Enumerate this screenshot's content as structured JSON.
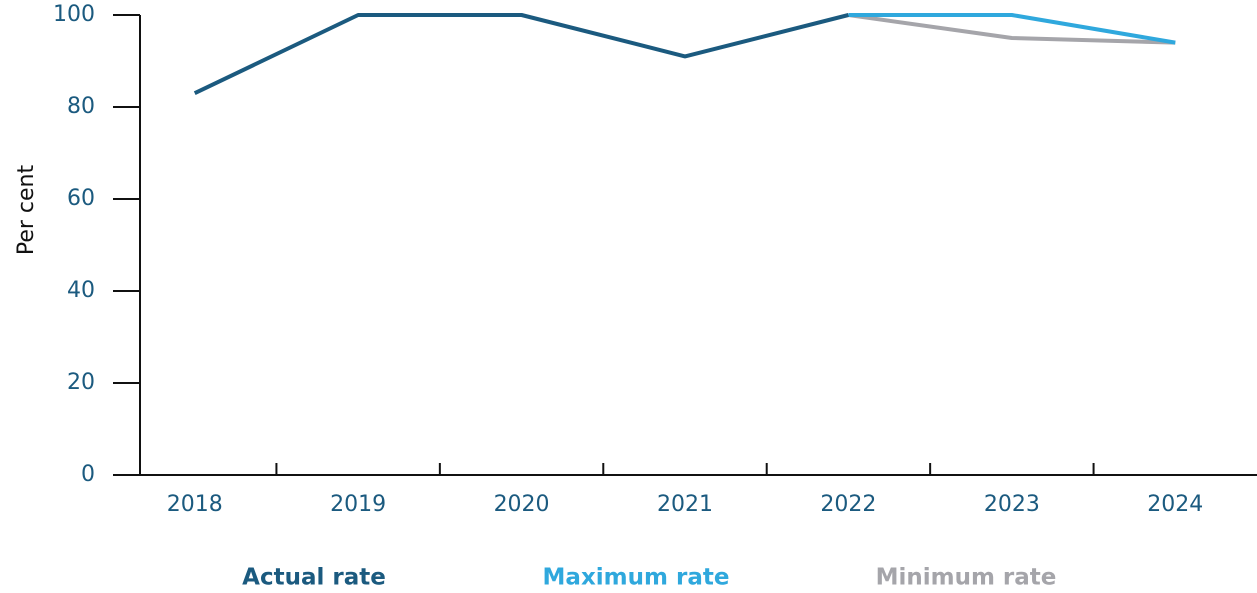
{
  "chart_data": {
    "type": "line",
    "y_label": "Per cent",
    "categories": [
      "2018",
      "2019",
      "2020",
      "2021",
      "2022",
      "2023",
      "2024"
    ],
    "series": [
      {
        "name": "Actual rate",
        "color": "#1b5a7f",
        "values": [
          83,
          100,
          100,
          91,
          100,
          null,
          null
        ]
      },
      {
        "name": "Maximum rate",
        "color": "#2fa8dd",
        "values": [
          null,
          null,
          null,
          null,
          100,
          100,
          94
        ]
      },
      {
        "name": "Minimum rate",
        "color": "#a5a5aa",
        "values": [
          null,
          null,
          null,
          null,
          100,
          95,
          94
        ]
      }
    ],
    "ylim": [
      0,
      100
    ],
    "yticks": [
      0,
      20,
      40,
      60,
      80,
      100
    ],
    "grid": false,
    "legend": "bottom"
  }
}
